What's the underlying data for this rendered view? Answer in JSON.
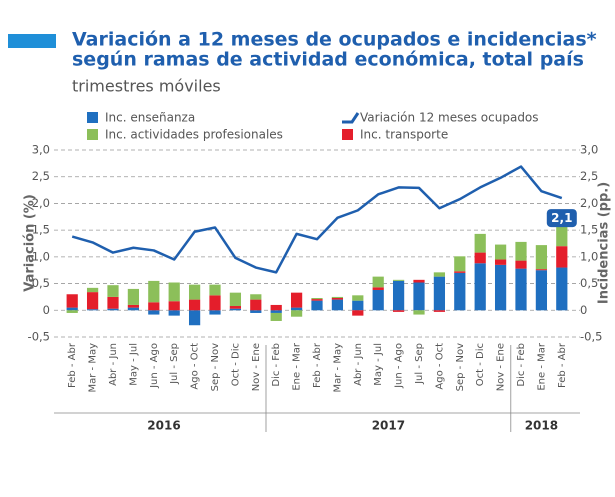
{
  "chart_data": {
    "type": "bar",
    "title": "Variación a 12 meses de ocupados e incidencias*",
    "title_line2": "según ramas de actividad económica, total país",
    "subtitle": "trimestres móviles",
    "ylabel": "Variación (%)",
    "y2label": "Incidencias (pp.)",
    "categories": [
      "Feb - Abr",
      "Mar - May",
      "Abr - Jun",
      "May - Jul",
      "Jun - Ago",
      "Jul - Sep",
      "Ago - Oct",
      "Sep - Nov",
      "Oct - Dic",
      "Nov - Ene",
      "Dic - Feb",
      "Ene - Mar",
      "Feb - Abr",
      "Mar - May",
      "Abr - Jun",
      "May - Jul",
      "Jun - Ago",
      "Jul - Sep",
      "Ago - Oct",
      "Sep - Nov",
      "Oct - Dic",
      "Nov - Ene",
      "Dic - Feb",
      "Ene - Mar",
      "Feb - Abr"
    ],
    "year_groups": [
      {
        "label": "2016",
        "count": 10
      },
      {
        "label": "2017",
        "count": 12
      },
      {
        "label": "2018",
        "count": 3
      }
    ],
    "series": [
      {
        "name": "Inc. enseñanza",
        "color": "#1f6fc0",
        "axis": "y2",
        "values": [
          0.05,
          0.02,
          0.03,
          0.05,
          -0.08,
          -0.1,
          -0.28,
          -0.08,
          0.03,
          -0.05,
          -0.05,
          0.05,
          0.18,
          0.2,
          0.18,
          0.38,
          0.55,
          0.52,
          0.63,
          0.7,
          0.88,
          0.85,
          0.78,
          0.75,
          0.8
        ]
      },
      {
        "name": "Inc. transporte",
        "color": "#e41e2b",
        "axis": "y2",
        "values": [
          0.25,
          0.32,
          0.22,
          0.05,
          0.15,
          0.17,
          0.2,
          0.28,
          0.05,
          0.2,
          0.1,
          0.28,
          0.03,
          0.03,
          -0.1,
          0.05,
          -0.03,
          0.05,
          -0.03,
          0.03,
          0.2,
          0.1,
          0.15,
          0.02,
          0.4
        ]
      },
      {
        "name": "Inc. actividades profesionales",
        "color": "#8cbf5a",
        "axis": "y2",
        "values": [
          -0.05,
          0.08,
          0.22,
          0.3,
          0.4,
          0.35,
          0.28,
          0.2,
          0.25,
          0.1,
          -0.15,
          -0.12,
          0.02,
          0.02,
          0.1,
          0.2,
          0.02,
          -0.08,
          0.08,
          0.28,
          0.35,
          0.28,
          0.35,
          0.45,
          0.5
        ]
      },
      {
        "name": "Variación 12 meses ocupados",
        "color": "#1f5fae",
        "type": "line",
        "values": [
          1.38,
          1.27,
          1.08,
          1.17,
          1.12,
          0.95,
          1.47,
          1.55,
          0.98,
          0.8,
          0.71,
          1.43,
          1.33,
          1.73,
          1.87,
          2.17,
          2.3,
          2.29,
          1.91,
          2.08,
          2.3,
          2.48,
          2.69,
          2.23,
          2.1
        ],
        "value_labels": [
          null,
          null,
          null,
          null,
          null,
          null,
          null,
          null,
          null,
          null,
          null,
          null,
          null,
          null,
          null,
          null,
          null,
          null,
          null,
          null,
          null,
          null,
          null,
          null,
          "2,1"
        ]
      }
    ],
    "ylim": [
      -0.5,
      3.0
    ],
    "yticks": [
      {
        "value": -0.5,
        "label": "-0,5"
      },
      0,
      {
        "value": 0.5,
        "label": "0,5"
      },
      {
        "value": 1.0,
        "label": "1,0"
      },
      {
        "value": 1.5,
        "label": "1,5"
      },
      {
        "value": 2.0,
        "label": "2,0"
      },
      {
        "value": 2.5,
        "label": "2,5"
      },
      {
        "value": 3.0,
        "label": "3,0"
      }
    ],
    "y2lim": [
      -0.5,
      3.0
    ],
    "y2ticks": [
      {
        "value": -0.5,
        "label": "-0,5"
      },
      0,
      {
        "value": 0.5,
        "label": "0,5"
      },
      {
        "value": 1.0,
        "label": "1,0"
      },
      {
        "value": 1.5,
        "label": "1,5"
      },
      {
        "value": 2.0,
        "label": "2,0"
      },
      {
        "value": 2.5,
        "label": "2,5"
      },
      {
        "value": 3.0,
        "label": "3,0"
      }
    ],
    "grid": true
  }
}
